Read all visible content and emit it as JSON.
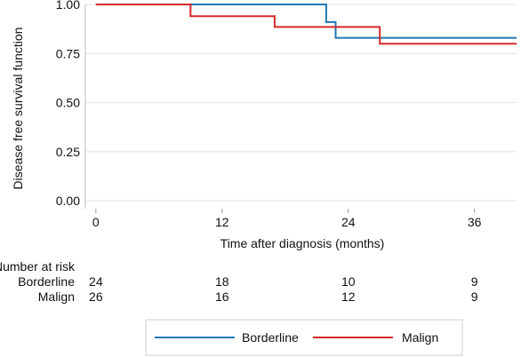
{
  "chart_data": {
    "type": "line",
    "subtype": "kaplan-meier-step",
    "xlabel": "Time after diagnosis (months)",
    "ylabel": "Disease free survival function",
    "xlim": [
      -1,
      40
    ],
    "ylim": [
      -0.04,
      1.0
    ],
    "x_ticks": [
      0,
      12,
      24,
      36
    ],
    "x_tick_labels": [
      "0",
      "12",
      "24",
      "36"
    ],
    "y_ticks": [
      0,
      0.25,
      0.5,
      0.75,
      1.0
    ],
    "y_tick_labels": [
      "0.00",
      "0.25",
      "0.50",
      "0.75",
      "1.00"
    ],
    "grid": "horizontal",
    "legend_position": "bottom",
    "series": [
      {
        "name": "Borderline",
        "color": "#1f77b4",
        "x": [
          0,
          21.9,
          21.9,
          22.8,
          22.8,
          40
        ],
        "y": [
          1.0,
          1.0,
          0.91,
          0.91,
          0.83,
          0.83
        ]
      },
      {
        "name": "Malign",
        "color": "#d62728",
        "x": [
          0,
          9,
          9,
          17,
          17,
          27,
          27,
          40
        ],
        "y": [
          1.0,
          1.0,
          0.94,
          0.94,
          0.885,
          0.885,
          0.8,
          0.8
        ]
      }
    ],
    "risk_table": {
      "title": "Number at risk",
      "time_points": [
        0,
        12,
        24,
        36
      ],
      "rows": [
        {
          "label": "Borderline",
          "values": [
            "24",
            "18",
            "10",
            "9"
          ]
        },
        {
          "label": "Malign",
          "values": [
            "26",
            "16",
            "12",
            "9"
          ]
        }
      ]
    }
  }
}
